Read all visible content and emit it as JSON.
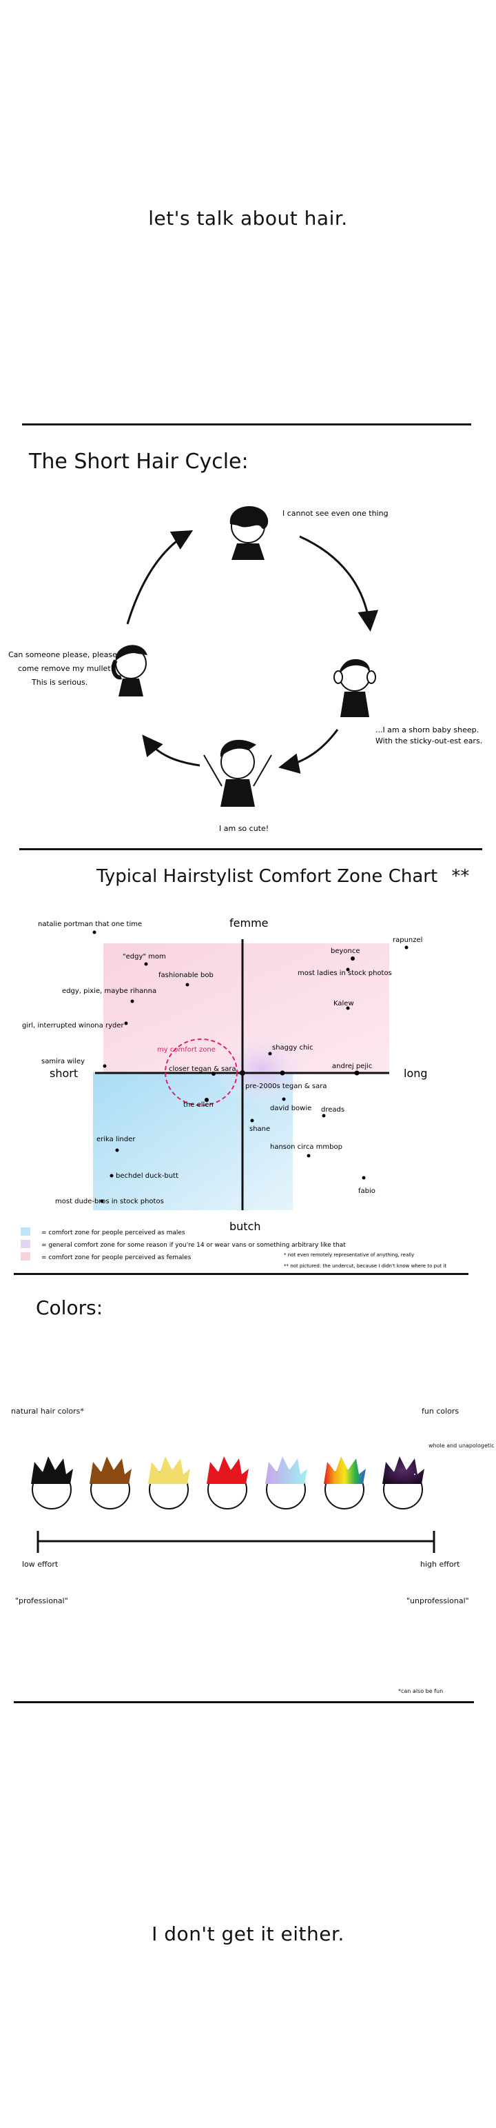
{
  "intro": {
    "title": "let's talk about hair."
  },
  "cycle": {
    "title": "The Short Hair Cycle:",
    "stages": {
      "top": "I cannot see even one thing",
      "right_1": "...I am a shorn baby sheep.",
      "right_2": "With the sticky-out-est ears.",
      "bottom": "I am so cute!",
      "left_1": "Can someone please, please",
      "left_2": "come remove my mullet?",
      "left_3": "This is serious."
    }
  },
  "comfort": {
    "title": "Typical Hairstylist Comfort Zone Chart",
    "title_mark": "**",
    "axes": {
      "top": "femme",
      "bottom": "butch",
      "left": "short",
      "right": "long"
    },
    "zone_label": "my comfort zone",
    "points": [
      "natalie portman that one time",
      "\"edgy\" mom",
      "fashionable bob",
      "edgy, pixie, maybe rihanna",
      "girl, interrupted winona ryder",
      "samira wiley",
      "closer tegan & sara",
      "the ellen",
      "erika linder",
      "bechdel duck-butt",
      "most dude-bros in stock photos",
      "beyonce",
      "rapunzel",
      "most ladies in stock photos",
      "Kalew",
      "shaggy chic",
      "andrej pejic",
      "pre-2000s tegan & sara",
      "david bowie",
      "dreads",
      "shane",
      "hanson circa mmbop",
      "fabio"
    ],
    "legend": [
      {
        "text": "= comfort zone for people perceived as males",
        "color": "#bfe4f6"
      },
      {
        "text": "= general comfort zone for some reason if you're 14 or wear vans or something arbitrary like that",
        "color": "#e7d4f3"
      },
      {
        "text": "= comfort zone for people perceived as females",
        "color": "#f7d3dc"
      }
    ],
    "footnote_1": "* not even remotely representative of anything, really",
    "footnote_2": "** not pictured: the undercut, because I didn't know where to put it"
  },
  "colors": {
    "title": "Colors:",
    "left_top": "natural hair colors*",
    "right_top": "fun colors",
    "right_top_small": "whole and unapologetic",
    "left_bottom": "low effort",
    "right_bottom": "high effort",
    "left_quote": "\"professional\"",
    "right_quote": "\"unprofessional\"",
    "footnote": "*can also be fun",
    "hair_colors": [
      "#111111",
      "#8b4a12",
      "#f3dd6a",
      "#e3171d",
      "#a9e9f3",
      "#rainbow",
      "#2a1433"
    ]
  },
  "outro": {
    "text": "I don't get it either."
  }
}
